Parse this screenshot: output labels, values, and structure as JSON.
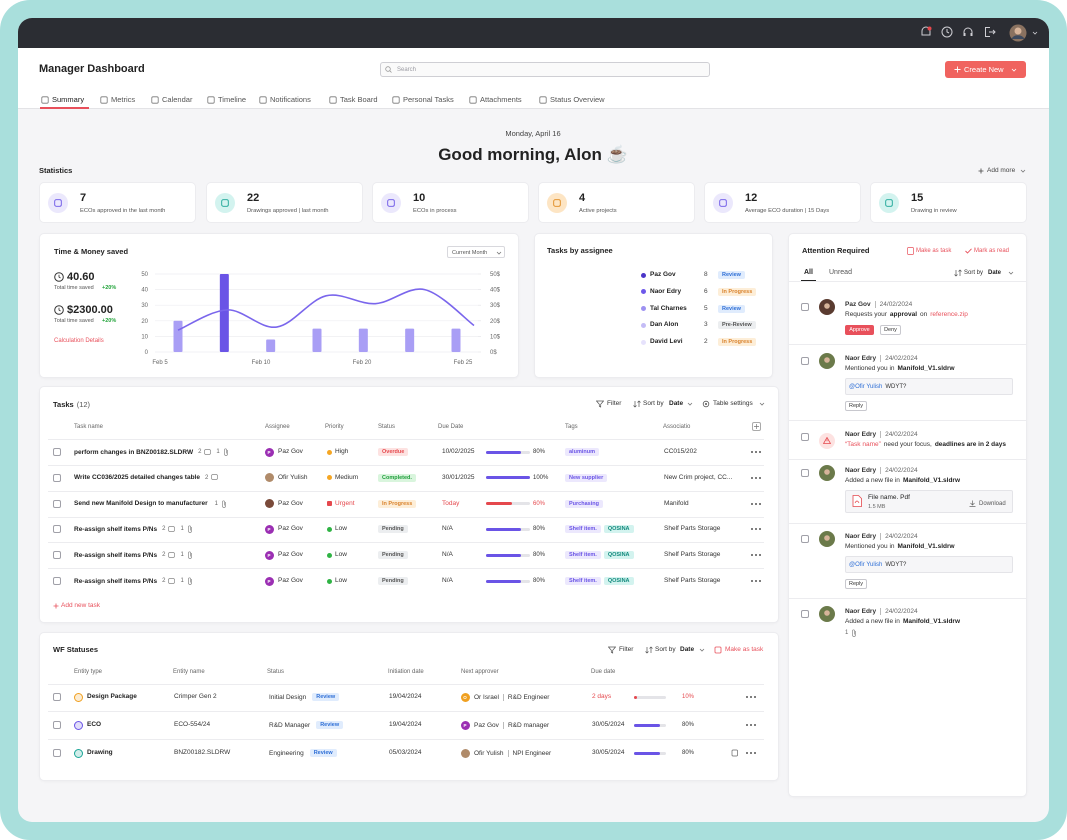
{
  "header": {
    "title": "Manager Dashboard",
    "search_placeholder": "Search",
    "create_button": "Create New"
  },
  "tabs": [
    "Summary",
    "Metrics",
    "Calendar",
    "Timeline",
    "Notifications",
    "Task Board",
    "Personal Tasks",
    "Attachments",
    "Status Overview"
  ],
  "greeting": {
    "date": "Monday, April 16",
    "message": "Good morning, Alon ☕"
  },
  "statistics": {
    "title": "Statistics",
    "add_more": "Add more",
    "cards": [
      {
        "value": 7,
        "label": "ECOs approved in the last month",
        "icon_bg": "#ebe8fc",
        "icon_color": "#6a54e6"
      },
      {
        "value": 22,
        "label": "Drawings approved | last month",
        "icon_bg": "#d3f3ef",
        "icon_color": "#1aa596"
      },
      {
        "value": 10,
        "label": "ECOs in process",
        "icon_bg": "#ebe8fc",
        "icon_color": "#6a54e6"
      },
      {
        "value": 4,
        "label": "Active projects",
        "icon_bg": "#fde5c4",
        "icon_color": "#e08a1e"
      },
      {
        "value": 12,
        "label": "Average ECO duration | 15 Days",
        "icon_bg": "#ebe8fc",
        "icon_color": "#6a54e6"
      },
      {
        "value": 15,
        "label": "Drawing in review",
        "icon_bg": "#d3f3ef",
        "icon_color": "#1aa596"
      }
    ]
  },
  "time_money": {
    "title": "Time & Money saved",
    "period": "Current Month",
    "metrics": [
      {
        "value": "40.60",
        "label": "Total time saved",
        "change": "+20%"
      },
      {
        "value": "$2300.00",
        "label": "Total time saved",
        "change": "+20%"
      }
    ],
    "link": "Calculation Details",
    "chart": {
      "type": "bar",
      "ylim": [
        0,
        50
      ],
      "yticks": [
        0,
        10,
        20,
        30,
        40,
        50
      ],
      "y2lim": [
        0,
        50
      ],
      "y2ticks": [
        {
          "value": 0,
          "label": "0$"
        },
        {
          "value": 10,
          "label": "10$"
        },
        {
          "value": 20,
          "label": "20$"
        },
        {
          "value": 30,
          "label": "30$"
        },
        {
          "value": 40,
          "label": "40$"
        },
        {
          "value": 50,
          "label": "50$"
        }
      ],
      "xticks": [
        "Feb 5",
        "Feb 10",
        "Feb 20",
        "Feb 25"
      ],
      "grid": true,
      "series": [
        {
          "type": "bar",
          "values": [
            20,
            50,
            8,
            15,
            15,
            15,
            15
          ],
          "colors": [
            "#a99ef5",
            "#6a54e6",
            "#a99ef5",
            "#a99ef5",
            "#a99ef5",
            "#a99ef5",
            "#a99ef5"
          ]
        },
        {
          "type": "line",
          "axis": "y2",
          "color": "#7a66ec",
          "values": [
            14,
            27,
            16,
            36,
            31,
            40,
            17
          ]
        }
      ]
    }
  },
  "assignees": {
    "title": "Tasks by assignee",
    "items": [
      {
        "name": "Paz Gov",
        "count": 8,
        "status": "Review",
        "color": "#4b36c8",
        "status_bg": "#e0ecfd",
        "status_fg": "#2f6fd6"
      },
      {
        "name": "Naor Edry",
        "count": 6,
        "status": "In Progress",
        "color": "#6d58ea",
        "status_bg": "#fdeed8",
        "status_fg": "#d9822b"
      },
      {
        "name": "Tal Charnes",
        "count": 5,
        "status": "Review",
        "color": "#9d91f1",
        "status_bg": "#e0ecfd",
        "status_fg": "#2f6fd6"
      },
      {
        "name": "Dan Alon",
        "count": 3,
        "status": "Pre-Review",
        "color": "#c4bcf6",
        "status_bg": "#eceef0",
        "status_fg": "#555555"
      },
      {
        "name": "David Levi",
        "count": 2,
        "status": "In Progress",
        "color": "#e6e2fc",
        "status_bg": "#fdeed8",
        "status_fg": "#d9822b"
      }
    ]
  },
  "tasks": {
    "title": "Tasks",
    "count": "(12)",
    "filter": "Filter",
    "sort_label": "Sort by",
    "sort_value": "Date",
    "table_settings": "Table settings",
    "columns": [
      "Task name",
      "Assignee",
      "Priority",
      "Status",
      "Due Date",
      "Tags",
      "Associatio"
    ],
    "rows": [
      {
        "name": "perform changes in BNZ00182.SLDRW",
        "comments": 2,
        "attachments": 1,
        "assignee": "Paz Gov",
        "avatar_initial": "P",
        "avatar_color": "#9b2fb3",
        "priority": "High",
        "priority_color": "#f5a623",
        "status": "Overdue",
        "status_bg": "#fde2e1",
        "status_fg": "#e5484d",
        "due": "10/02/2025",
        "progress": 80,
        "progress_label": "80%",
        "progress_color": "#6a54e6",
        "tags": [
          {
            "t": "aluminum",
            "bg": "#ece8fd",
            "fg": "#6a54e6"
          }
        ],
        "association": "CC015/202"
      },
      {
        "name": "Write CC036/2025 detailed changes table",
        "comments": 2,
        "attachments": null,
        "assignee": "Ofir Yulish",
        "avatar_color": "#b08b6a",
        "priority": "Medium",
        "priority_color": "#f5a623",
        "status": "Completed.",
        "status_bg": "#d9f5dd",
        "status_fg": "#1e9e3b",
        "due": "30/01/2025",
        "progress": 100,
        "progress_label": "100%",
        "progress_color": "#6a54e6",
        "tags": [
          {
            "t": "New supplier",
            "bg": "#ece8fd",
            "fg": "#6a54e6"
          }
        ],
        "association": "New Crim project, CC..."
      },
      {
        "name": "Send new Manifold Design to manufacturer",
        "comments": null,
        "attachments": 1,
        "assignee": "Paz Gov",
        "avatar_color": "#7a4a3a",
        "priority": "Urgent",
        "priority_color": "#e5484d",
        "status": "In Progress",
        "status_bg": "#fdeed8",
        "status_fg": "#d9822b",
        "due": "Today",
        "due_color": "#e5484d",
        "progress": 60,
        "progress_label": "60%",
        "progress_color": "#e5484d",
        "tags": [
          {
            "t": "Purchasing",
            "bg": "#ece8fd",
            "fg": "#6a54e6"
          }
        ],
        "association": "Manifold"
      },
      {
        "name": "Re-assign shelf items P/Ns",
        "comments": 2,
        "attachments": 1,
        "assignee": "Paz Gov",
        "avatar_initial": "P",
        "avatar_color": "#9b2fb3",
        "priority": "Low",
        "priority_color": "#2fb344",
        "status": "Pending",
        "status_bg": "#eceef0",
        "status_fg": "#555555",
        "due": "N/A",
        "progress": 80,
        "progress_label": "80%",
        "progress_color": "#6a54e6",
        "tags": [
          {
            "t": "Shelf item.",
            "bg": "#ece8fd",
            "fg": "#6a54e6"
          },
          {
            "t": "QOSINA",
            "bg": "#d3f3ef",
            "fg": "#128a7d"
          }
        ],
        "association": "Shelf Parts Storage"
      },
      {
        "name": "Re-assign shelf items P/Ns",
        "comments": 2,
        "attachments": 1,
        "assignee": "Paz Gov",
        "avatar_initial": "P",
        "avatar_color": "#9b2fb3",
        "priority": "Low",
        "priority_color": "#2fb344",
        "status": "Pending",
        "status_bg": "#eceef0",
        "status_fg": "#555555",
        "due": "N/A",
        "progress": 80,
        "progress_label": "80%",
        "progress_color": "#6a54e6",
        "tags": [
          {
            "t": "Shelf item.",
            "bg": "#ece8fd",
            "fg": "#6a54e6"
          },
          {
            "t": "QOSINA",
            "bg": "#d3f3ef",
            "fg": "#128a7d"
          }
        ],
        "association": "Shelf Parts Storage"
      },
      {
        "name": "Re-assign shelf items P/Ns",
        "comments": 2,
        "attachments": 1,
        "assignee": "Paz Gov",
        "avatar_initial": "P",
        "avatar_color": "#9b2fb3",
        "priority": "Low",
        "priority_color": "#2fb344",
        "status": "Pending",
        "status_bg": "#eceef0",
        "status_fg": "#555555",
        "due": "N/A",
        "progress": 80,
        "progress_label": "80%",
        "progress_color": "#6a54e6",
        "tags": [
          {
            "t": "Shelf item.",
            "bg": "#ece8fd",
            "fg": "#6a54e6"
          },
          {
            "t": "QOSINA",
            "bg": "#d3f3ef",
            "fg": "#128a7d"
          }
        ],
        "association": "Shelf Parts Storage"
      }
    ],
    "add_task": "Add new task"
  },
  "wf_statuses": {
    "title": "WF Statuses",
    "filter": "Filter",
    "sort_label": "Sort by",
    "sort_value": "Date",
    "make_task": "Make as task",
    "columns": [
      "Entity type",
      "Entity name",
      "Status",
      "Initiation date",
      "Next approver",
      "Due date"
    ],
    "rows": [
      {
        "type": "Design Package",
        "icon_color": "#f0a020",
        "name": "Crimper Gen 2",
        "status": "Initial Design",
        "badge": "Review",
        "date": "19/04/2024",
        "approver": "Or Israel",
        "avatar_initial": "O",
        "avatar_color": "#f0a020",
        "role": "R&D Engineer",
        "due": "2 days",
        "due_color": "#e5484d",
        "progress": 10,
        "progress_label": "10%",
        "progress_color": "#e5484d"
      },
      {
        "type": "ECO",
        "icon_color": "#6a54e6",
        "name": "ECO-554/24",
        "status": "R&D Manager",
        "badge": "Review",
        "date": "19/04/2024",
        "approver": "Paz Gov",
        "avatar_initial": "P",
        "avatar_color": "#9b2fb3",
        "role": "R&D manager",
        "due": "30/05/2024",
        "progress": 80,
        "progress_label": "80%",
        "progress_color": "#6a54e6"
      },
      {
        "type": "Drawing",
        "icon_color": "#1aa596",
        "name": "BNZ00182.SLDRW",
        "status": "Engineering",
        "badge": "Review",
        "date": "05/03/2024",
        "approver": "Ofir Yulish",
        "avatar_color": "#b08b6a",
        "role": "NPI Engineer",
        "due": "30/05/2024",
        "progress": 80,
        "progress_label": "80%",
        "progress_color": "#6a54e6"
      }
    ]
  },
  "attention": {
    "title": "Attention Required",
    "make_task": "Make as task",
    "mark_read": "Mark as read",
    "tabs": [
      "All",
      "Unread"
    ],
    "sort_label": "Sort by",
    "sort_value": "Date",
    "items": [
      {
        "name": "Paz Gov",
        "date": "24/02/2024",
        "avatar_color": "#5a3b30",
        "segments": [
          {
            "t": "Requests your"
          },
          {
            "t": "approval",
            "style": "bold"
          },
          {
            "t": "on"
          },
          {
            "t": "reference.zip",
            "style": "link"
          }
        ],
        "actions": [
          "Approve",
          "Deny"
        ]
      },
      {
        "name": "Naor Edry",
        "date": "24/02/2024",
        "avatar_color": "#6b7a4a",
        "segments": [
          {
            "t": "Mentioned you in"
          },
          {
            "t": "Manifold_V1.sldrw",
            "style": "bold"
          }
        ],
        "quote": {
          "mention": "@Ofir Yulish",
          "text": "WDYT?"
        },
        "reply": "Reply"
      },
      {
        "name": "Naor Edry",
        "date": "24/02/2024",
        "alert": true,
        "segments": [
          {
            "t": "“Task name”",
            "style": "alert"
          },
          {
            "t": "need your focus,"
          },
          {
            "t": "deadlines are in 2 days",
            "style": "bold"
          }
        ]
      },
      {
        "name": "Naor Edry",
        "date": "24/02/2024",
        "avatar_color": "#6b7a4a",
        "segments": [
          {
            "t": "Added a new file in"
          },
          {
            "t": "Manifold_V1.sldrw",
            "style": "bold"
          }
        ],
        "file": {
          "name": "File name. Pdf",
          "size": "1.5 MB",
          "download": "Download"
        }
      },
      {
        "name": "Naor Edry",
        "date": "24/02/2024",
        "avatar_color": "#6b7a4a",
        "segments": [
          {
            "t": "Mentioned you in"
          },
          {
            "t": "Manifold_V1.sldrw",
            "style": "bold"
          }
        ],
        "quote": {
          "mention": "@Ofir Yulish",
          "text": "WDYT?"
        },
        "reply": "Reply"
      },
      {
        "name": "Naor Edry",
        "date": "24/02/2024",
        "avatar_color": "#6b7a4a",
        "segments": [
          {
            "t": "Added a new file in"
          },
          {
            "t": "Manifold_V1.sldrw",
            "style": "bold"
          }
        ],
        "attachments": 1
      }
    ]
  }
}
